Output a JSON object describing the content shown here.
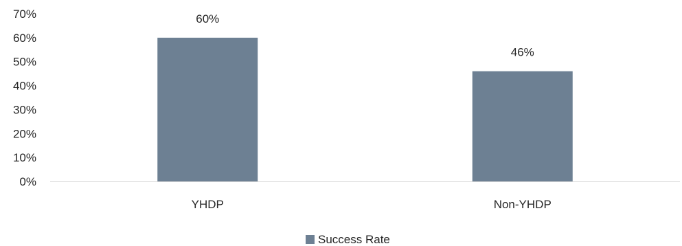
{
  "chart_data": {
    "type": "bar",
    "title": "",
    "xlabel": "",
    "ylabel": "",
    "categories": [
      "YHDP",
      "Non-YHDP"
    ],
    "series": [
      {
        "name": "Success Rate",
        "values": [
          60,
          46
        ],
        "data_labels": [
          "60%",
          "46%"
        ],
        "color": "#6d8093"
      }
    ],
    "ylim": [
      0,
      70
    ],
    "yticks": [
      0,
      10,
      20,
      30,
      40,
      50,
      60,
      70
    ],
    "ytick_labels": [
      "0%",
      "10%",
      "20%",
      "30%",
      "40%",
      "50%",
      "60%",
      "70%"
    ],
    "grid": false,
    "legend": "bottom-center",
    "axis_color": "#d9d9d9",
    "text_color": "#262626"
  }
}
